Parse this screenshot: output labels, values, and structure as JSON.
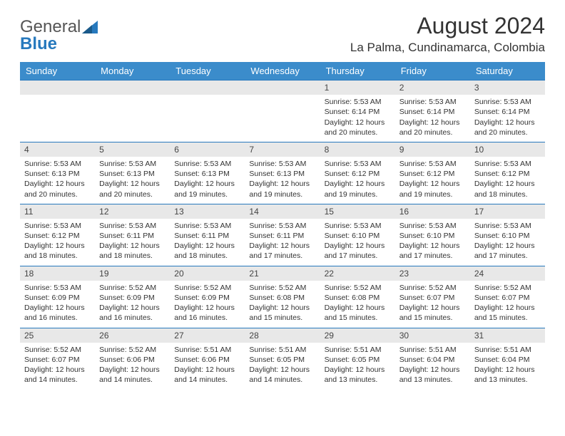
{
  "logo": {
    "part1": "General",
    "part2": "Blue"
  },
  "header": {
    "title": "August 2024",
    "location": "La Palma, Cundinamarca, Colombia"
  },
  "colors": {
    "header_bg": "#3b8ccb",
    "header_text": "#ffffff",
    "daynum_bg": "#e8e8e8",
    "row_border": "#2779bd",
    "logo_accent": "#2779bd",
    "text": "#333333"
  },
  "dayNames": [
    "Sunday",
    "Monday",
    "Tuesday",
    "Wednesday",
    "Thursday",
    "Friday",
    "Saturday"
  ],
  "layout": {
    "columns": 7,
    "rows": 5,
    "first_day_column_index": 4
  },
  "weeks": [
    [
      null,
      null,
      null,
      null,
      {
        "n": "1",
        "sr": "5:53 AM",
        "ss": "6:14 PM",
        "dl": "12 hours and 20 minutes."
      },
      {
        "n": "2",
        "sr": "5:53 AM",
        "ss": "6:14 PM",
        "dl": "12 hours and 20 minutes."
      },
      {
        "n": "3",
        "sr": "5:53 AM",
        "ss": "6:14 PM",
        "dl": "12 hours and 20 minutes."
      }
    ],
    [
      {
        "n": "4",
        "sr": "5:53 AM",
        "ss": "6:13 PM",
        "dl": "12 hours and 20 minutes."
      },
      {
        "n": "5",
        "sr": "5:53 AM",
        "ss": "6:13 PM",
        "dl": "12 hours and 20 minutes."
      },
      {
        "n": "6",
        "sr": "5:53 AM",
        "ss": "6:13 PM",
        "dl": "12 hours and 19 minutes."
      },
      {
        "n": "7",
        "sr": "5:53 AM",
        "ss": "6:13 PM",
        "dl": "12 hours and 19 minutes."
      },
      {
        "n": "8",
        "sr": "5:53 AM",
        "ss": "6:12 PM",
        "dl": "12 hours and 19 minutes."
      },
      {
        "n": "9",
        "sr": "5:53 AM",
        "ss": "6:12 PM",
        "dl": "12 hours and 19 minutes."
      },
      {
        "n": "10",
        "sr": "5:53 AM",
        "ss": "6:12 PM",
        "dl": "12 hours and 18 minutes."
      }
    ],
    [
      {
        "n": "11",
        "sr": "5:53 AM",
        "ss": "6:12 PM",
        "dl": "12 hours and 18 minutes."
      },
      {
        "n": "12",
        "sr": "5:53 AM",
        "ss": "6:11 PM",
        "dl": "12 hours and 18 minutes."
      },
      {
        "n": "13",
        "sr": "5:53 AM",
        "ss": "6:11 PM",
        "dl": "12 hours and 18 minutes."
      },
      {
        "n": "14",
        "sr": "5:53 AM",
        "ss": "6:11 PM",
        "dl": "12 hours and 17 minutes."
      },
      {
        "n": "15",
        "sr": "5:53 AM",
        "ss": "6:10 PM",
        "dl": "12 hours and 17 minutes."
      },
      {
        "n": "16",
        "sr": "5:53 AM",
        "ss": "6:10 PM",
        "dl": "12 hours and 17 minutes."
      },
      {
        "n": "17",
        "sr": "5:53 AM",
        "ss": "6:10 PM",
        "dl": "12 hours and 17 minutes."
      }
    ],
    [
      {
        "n": "18",
        "sr": "5:53 AM",
        "ss": "6:09 PM",
        "dl": "12 hours and 16 minutes."
      },
      {
        "n": "19",
        "sr": "5:52 AM",
        "ss": "6:09 PM",
        "dl": "12 hours and 16 minutes."
      },
      {
        "n": "20",
        "sr": "5:52 AM",
        "ss": "6:09 PM",
        "dl": "12 hours and 16 minutes."
      },
      {
        "n": "21",
        "sr": "5:52 AM",
        "ss": "6:08 PM",
        "dl": "12 hours and 15 minutes."
      },
      {
        "n": "22",
        "sr": "5:52 AM",
        "ss": "6:08 PM",
        "dl": "12 hours and 15 minutes."
      },
      {
        "n": "23",
        "sr": "5:52 AM",
        "ss": "6:07 PM",
        "dl": "12 hours and 15 minutes."
      },
      {
        "n": "24",
        "sr": "5:52 AM",
        "ss": "6:07 PM",
        "dl": "12 hours and 15 minutes."
      }
    ],
    [
      {
        "n": "25",
        "sr": "5:52 AM",
        "ss": "6:07 PM",
        "dl": "12 hours and 14 minutes."
      },
      {
        "n": "26",
        "sr": "5:52 AM",
        "ss": "6:06 PM",
        "dl": "12 hours and 14 minutes."
      },
      {
        "n": "27",
        "sr": "5:51 AM",
        "ss": "6:06 PM",
        "dl": "12 hours and 14 minutes."
      },
      {
        "n": "28",
        "sr": "5:51 AM",
        "ss": "6:05 PM",
        "dl": "12 hours and 14 minutes."
      },
      {
        "n": "29",
        "sr": "5:51 AM",
        "ss": "6:05 PM",
        "dl": "12 hours and 13 minutes."
      },
      {
        "n": "30",
        "sr": "5:51 AM",
        "ss": "6:04 PM",
        "dl": "12 hours and 13 minutes."
      },
      {
        "n": "31",
        "sr": "5:51 AM",
        "ss": "6:04 PM",
        "dl": "12 hours and 13 minutes."
      }
    ]
  ],
  "labels": {
    "sunrise": "Sunrise: ",
    "sunset": "Sunset: ",
    "daylight": "Daylight: "
  }
}
